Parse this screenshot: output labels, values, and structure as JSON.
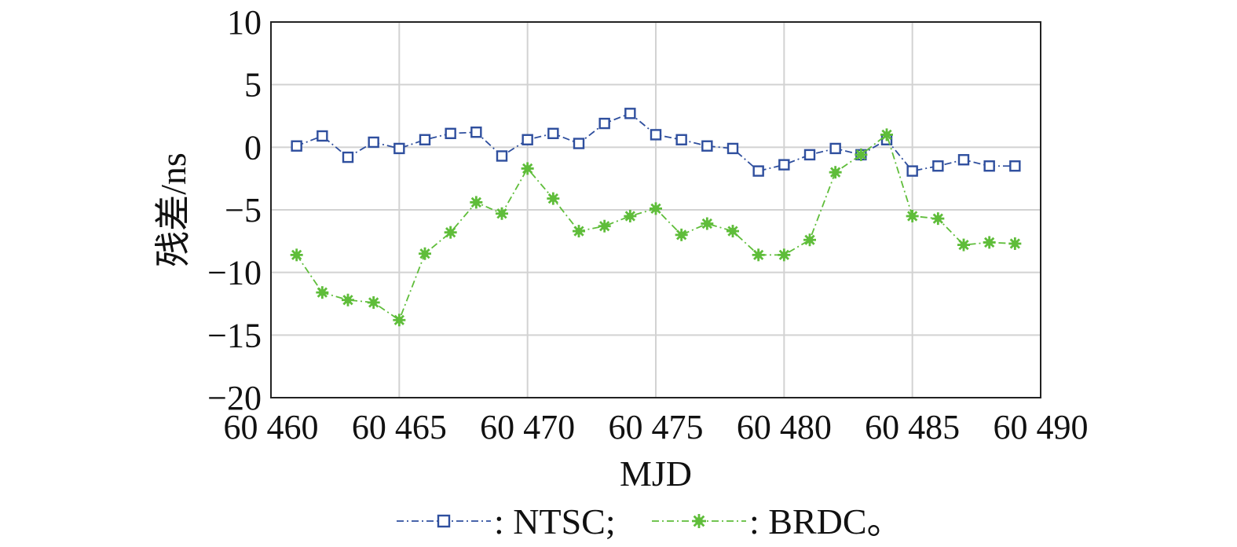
{
  "chart_data": {
    "type": "line",
    "title": "",
    "xlabel": "MJD",
    "ylabel": "残差/ns",
    "xlim": [
      60460,
      60490
    ],
    "ylim": [
      -20,
      10
    ],
    "x_ticks": [
      60460,
      60465,
      60470,
      60475,
      60480,
      60485,
      60490
    ],
    "x_tick_labels": [
      "60 460",
      "60 465",
      "60 470",
      "60 475",
      "60 480",
      "60 485",
      "60 490"
    ],
    "y_ticks": [
      10,
      5,
      0,
      -5,
      -10,
      -15,
      -20
    ],
    "y_tick_labels": [
      "10",
      "5",
      "0",
      "−5",
      "−10",
      "−15",
      "−20"
    ],
    "grid": true,
    "legend_position": "bottom",
    "x": [
      60461,
      60462,
      60463,
      60464,
      60465,
      60466,
      60467,
      60468,
      60469,
      60470,
      60471,
      60472,
      60473,
      60474,
      60475,
      60476,
      60477,
      60478,
      60479,
      60480,
      60481,
      60482,
      60483,
      60484,
      60485,
      60486,
      60487,
      60488,
      60489
    ],
    "series": [
      {
        "name": "NTSC",
        "legend_label": ": NTSC;",
        "color": "#2f4f9e",
        "marker": "square",
        "values": [
          0.1,
          0.9,
          -0.8,
          0.4,
          -0.1,
          0.6,
          1.1,
          1.2,
          -0.7,
          0.6,
          1.1,
          0.3,
          1.9,
          2.7,
          1.0,
          0.6,
          0.1,
          -0.1,
          -1.9,
          -1.4,
          -0.6,
          -0.1,
          -0.6,
          0.6,
          -1.9,
          -1.5,
          -1.0,
          -1.5,
          -1.5
        ]
      },
      {
        "name": "BRDC",
        "legend_label": ": BRDC。",
        "color": "#5fbd3a",
        "marker": "asterisk",
        "values": [
          -8.6,
          -11.6,
          -12.2,
          -12.4,
          -13.8,
          -8.5,
          -6.8,
          -4.4,
          -5.3,
          -1.7,
          -4.1,
          -6.7,
          -6.3,
          -5.5,
          -4.9,
          -7.0,
          -6.1,
          -6.7,
          -8.6,
          -8.6,
          -7.4,
          -2.0,
          -0.6,
          1.0,
          -5.5,
          -5.7,
          -7.8,
          -7.6,
          -7.7
        ]
      }
    ]
  }
}
